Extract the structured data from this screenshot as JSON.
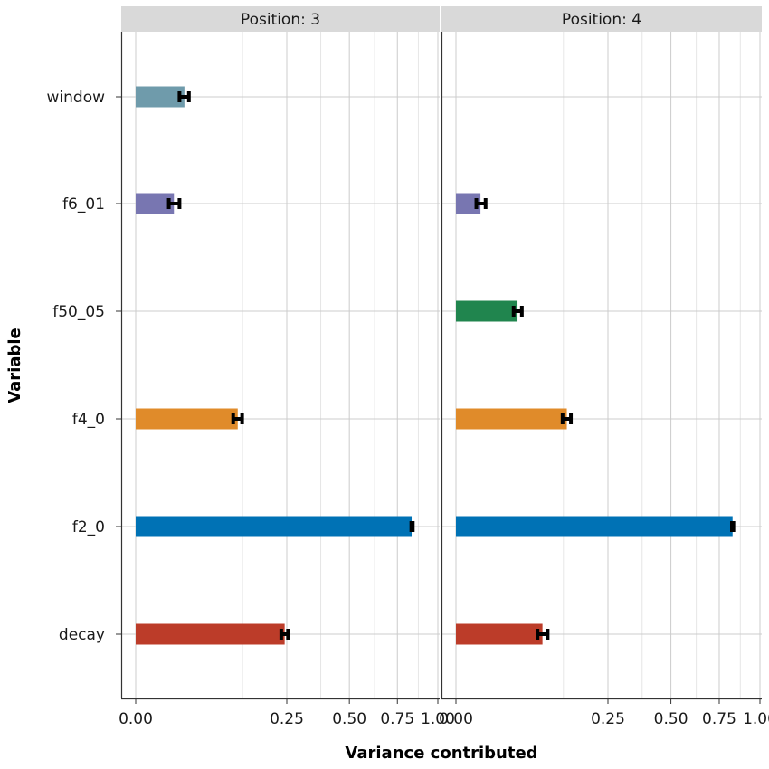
{
  "chart_data": {
    "type": "bar",
    "orientation": "horizontal",
    "xlabel": "Variance contributed",
    "ylabel": "Variable",
    "x_scale": "sqrt",
    "x_ticks": [
      "0.00",
      "0.25",
      "0.50",
      "0.75",
      "1.00"
    ],
    "x_tick_values": [
      0,
      0.25,
      0.5,
      0.75,
      1.0
    ],
    "categories": [
      "window",
      "f6_01",
      "f50_05",
      "f4_0",
      "f2_0",
      "decay"
    ],
    "panels": [
      {
        "label": "Position: 3",
        "bars": [
          {
            "variable": "window",
            "value": 0.026,
            "err_low": 0.021,
            "err_high": 0.031,
            "color": "#6f9bab"
          },
          {
            "variable": "f6_01",
            "value": 0.016,
            "err_low": 0.012,
            "err_high": 0.021,
            "color": "#7876b1"
          },
          {
            "variable": "f4_0",
            "value": 0.114,
            "err_low": 0.104,
            "err_high": 0.124,
            "color": "#e08b2a"
          },
          {
            "variable": "f2_0",
            "value": 0.834,
            "err_low": 0.832,
            "err_high": 0.841,
            "color": "#0072b5"
          },
          {
            "variable": "decay",
            "value": 0.243,
            "err_low": 0.232,
            "err_high": 0.254,
            "color": "#bc3c29"
          }
        ]
      },
      {
        "label": "Position: 4",
        "bars": [
          {
            "variable": "f6_01",
            "value": 0.0065,
            "err_low": 0.0045,
            "err_high": 0.0095,
            "color": "#7876b1"
          },
          {
            "variable": "f50_05",
            "value": 0.041,
            "err_low": 0.036,
            "err_high": 0.047,
            "color": "#20854e"
          },
          {
            "variable": "f4_0",
            "value": 0.133,
            "err_low": 0.123,
            "err_high": 0.143,
            "color": "#e08b2a"
          },
          {
            "variable": "f2_0",
            "value": 0.828,
            "err_low": 0.824,
            "err_high": 0.833,
            "color": "#0072b5"
          },
          {
            "variable": "decay",
            "value": 0.081,
            "err_low": 0.072,
            "err_high": 0.091,
            "color": "#bc3c29"
          }
        ]
      }
    ],
    "grid": true,
    "legend": "none"
  }
}
